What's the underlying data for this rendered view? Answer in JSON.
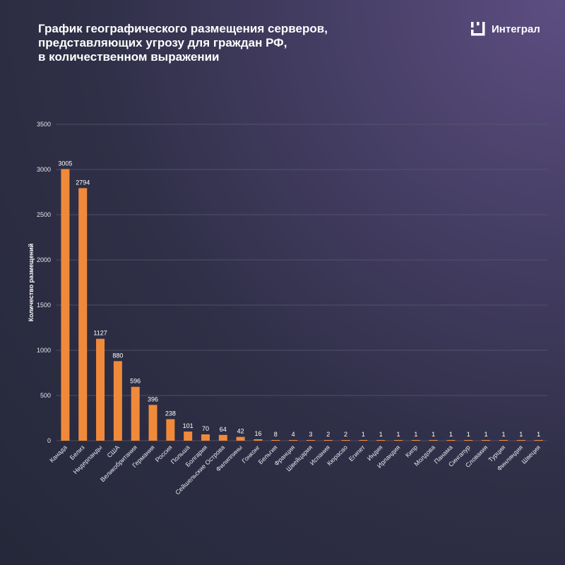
{
  "header": {
    "title_lines": [
      "График географического размещения серверов,",
      "представляющих угрозу для граждан РФ,",
      "в количественном выражении"
    ],
    "logo_text": "Интеграл",
    "logo_icon": "integral-logo-icon"
  },
  "colors": {
    "bar": "#f08a3a",
    "text": "#ffffff"
  },
  "chart_data": {
    "type": "bar",
    "title": "График географического размещения серверов, представляющих угрозу для граждан РФ, в количественном выражении",
    "xlabel": "",
    "ylabel": "Количество размещений",
    "ylim": [
      0,
      3500
    ],
    "yticks": [
      0,
      500,
      1000,
      1500,
      2000,
      2500,
      3000,
      3500
    ],
    "grid": true,
    "legend": "none",
    "categories": [
      "Канада",
      "Белиз",
      "Нидерланды",
      "США",
      "Великобритания",
      "Германия",
      "Россия",
      "Польша",
      "Болгария",
      "Сейшельские Острова",
      "Филиппины",
      "Гонконг",
      "Бельгия",
      "Франция",
      "Швейцария",
      "Испания",
      "Кюрасао",
      "Египет",
      "Индия",
      "Ирландия",
      "Кипр",
      "Молдова",
      "Панама",
      "Сингапур",
      "Словакия",
      "Турция",
      "Финляндия",
      "Швеция"
    ],
    "values": [
      3005,
      2794,
      1127,
      880,
      596,
      396,
      238,
      101,
      70,
      64,
      42,
      16,
      8,
      4,
      3,
      2,
      2,
      1,
      1,
      1,
      1,
      1,
      1,
      1,
      1,
      1,
      1,
      1
    ]
  }
}
